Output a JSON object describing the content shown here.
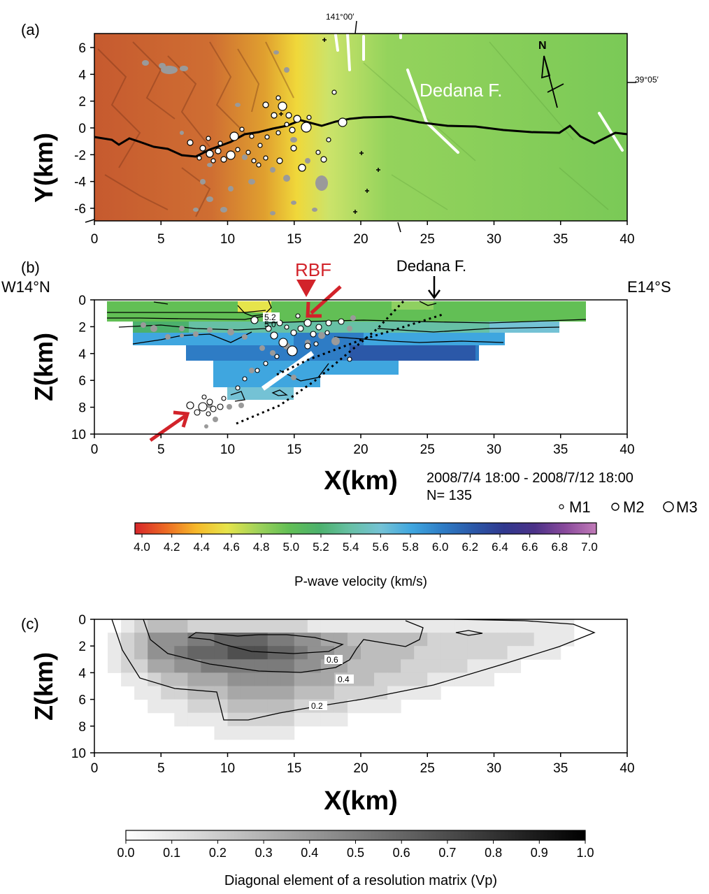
{
  "panel_a": {
    "label": "(a)",
    "ylabel": "Y(km)",
    "xticks": [
      "0",
      "5",
      "10",
      "15",
      "20",
      "25",
      "30",
      "35",
      "40"
    ],
    "yticks": [
      "6",
      "4",
      "2",
      "0",
      "-2",
      "-4",
      "-6"
    ],
    "lon_label": "141°00′",
    "lat_label": "39°05′",
    "fault_label": "Dedana F.",
    "north_label": "N",
    "relief_colors": {
      "west": "#c1602e",
      "mid": "#e8b62e",
      "transition": "#bfe06a",
      "east": "#7ccb55"
    }
  },
  "panel_b": {
    "label": "(b)",
    "ylabel": "Z(km)",
    "xlabel": "X(km)",
    "left_end": "W14°N",
    "right_end": "E14°S",
    "rbf_label": "RBF",
    "dedana_label": "Dedana F.",
    "contour_labels": [
      "5.2",
      "5.0"
    ],
    "xticks": [
      "0",
      "5",
      "10",
      "15",
      "20",
      "25",
      "30",
      "35",
      "40"
    ],
    "yticks": [
      "0",
      "2",
      "4",
      "6",
      "8",
      "10"
    ],
    "period": "2008/7/4 18:00 - 2008/7/12 18:00",
    "count": "N= 135",
    "magnitudes": [
      "M1",
      "M2",
      "M3"
    ]
  },
  "colorbar_vp": {
    "title": "P-wave velocity (km/s)",
    "ticks": [
      "4.0",
      "4.2",
      "4.4",
      "4.6",
      "4.8",
      "5.0",
      "5.2",
      "5.4",
      "5.6",
      "5.8",
      "6.0",
      "6.2",
      "6.4",
      "6.6",
      "6.8",
      "7.0"
    ],
    "colors": [
      "#d7262b",
      "#ec6a24",
      "#f6b92a",
      "#e6e44b",
      "#9fd25a",
      "#62bf55",
      "#4cb16d",
      "#67c0a5",
      "#74c2d5",
      "#3fa6df",
      "#2e7cc5",
      "#2b58a8",
      "#30388e",
      "#4c3288",
      "#8a4a9c",
      "#c17bb8"
    ]
  },
  "panel_c": {
    "label": "(c)",
    "ylabel": "Z(km)",
    "xlabel": "X(km)",
    "contour_labels": [
      "0.6",
      "0.4",
      "0.2"
    ],
    "xticks": [
      "0",
      "5",
      "10",
      "15",
      "20",
      "25",
      "30",
      "35",
      "40"
    ],
    "yticks": [
      "0",
      "2",
      "4",
      "6",
      "8",
      "10"
    ]
  },
  "colorbar_res": {
    "title": "Diagonal element of a resolution matrix  (Vp)",
    "ticks": [
      "0.0",
      "0.1",
      "0.2",
      "0.3",
      "0.4",
      "0.5",
      "0.6",
      "0.7",
      "0.8",
      "0.9",
      "1.0"
    ]
  }
}
